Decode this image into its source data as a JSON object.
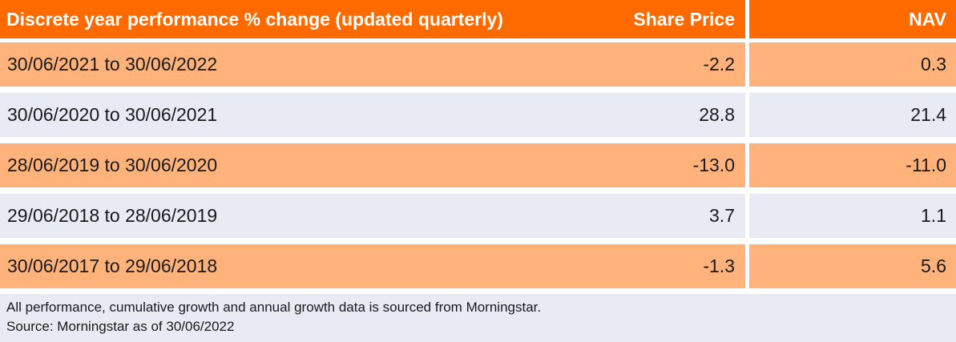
{
  "header": {
    "title": "Discrete year performance % change (updated quarterly)",
    "col_share_price": "Share Price",
    "col_nav": "NAV"
  },
  "rows": [
    {
      "period": "30/06/2021 to 30/06/2022",
      "share_price": "-2.2",
      "nav": "0.3"
    },
    {
      "period": "30/06/2020 to 30/06/2021",
      "share_price": "28.8",
      "nav": "21.4"
    },
    {
      "period": "28/06/2019 to 30/06/2020",
      "share_price": "-13.0",
      "nav": "-11.0"
    },
    {
      "period": "29/06/2018 to 28/06/2019",
      "share_price": "3.7",
      "nav": "1.1"
    },
    {
      "period": "30/06/2017 to 29/06/2018",
      "share_price": "-1.3",
      "nav": "5.6"
    }
  ],
  "footer": {
    "line1": "All performance, cumulative growth and annual growth data is sourced from Morningstar.",
    "line2": "Source: Morningstar as of 30/06/2022"
  },
  "colors": {
    "header_bg": "#ff6a00",
    "row_orange": "#ffb27a",
    "row_grey": "#e9ebf4"
  }
}
